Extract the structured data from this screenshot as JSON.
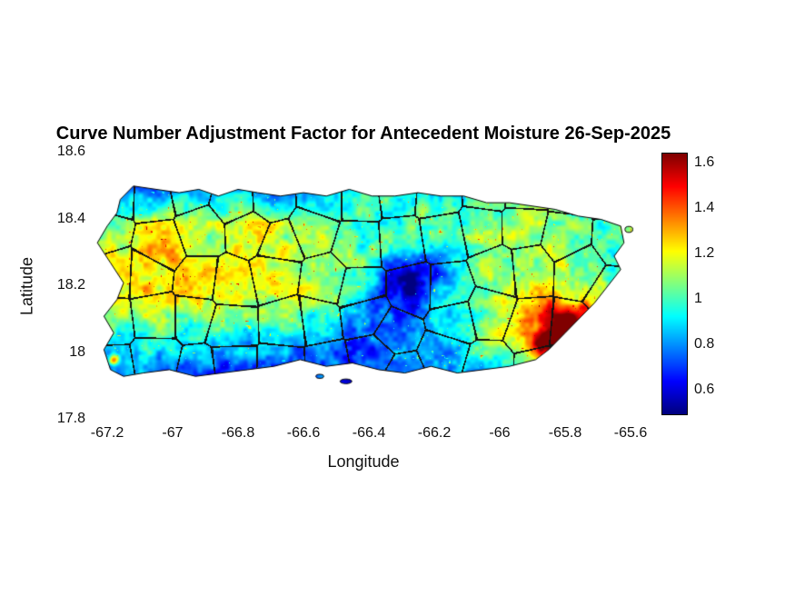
{
  "chart_data": {
    "type": "heatmap",
    "title": "Curve Number Adjustment Factor for Antecedent Moisture 26-Sep-2025",
    "xlabel": "Longitude",
    "ylabel": "Latitude",
    "region": "Puerto Rico",
    "xlim": [
      -67.25,
      -65.5833
    ],
    "ylim": [
      17.8,
      18.6
    ],
    "xticks": [
      {
        "value": -67.2,
        "label": "-67.2"
      },
      {
        "value": -67.0,
        "label": "-67"
      },
      {
        "value": -66.8,
        "label": "-66.8"
      },
      {
        "value": -66.6,
        "label": "-66.6"
      },
      {
        "value": -66.4,
        "label": "-66.4"
      },
      {
        "value": -66.2,
        "label": "-66.2"
      },
      {
        "value": -66.0,
        "label": "-66"
      },
      {
        "value": -65.8,
        "label": "-65.8"
      },
      {
        "value": -65.6,
        "label": "-65.6"
      }
    ],
    "yticks": [
      {
        "value": 18.6,
        "label": "18.6"
      },
      {
        "value": 18.4,
        "label": "18.4"
      },
      {
        "value": 18.2,
        "label": "18.2"
      },
      {
        "value": 18.0,
        "label": "18"
      },
      {
        "value": 17.8,
        "label": "17.8"
      }
    ],
    "colormap": "jet",
    "clim": [
      0.5,
      1.65
    ],
    "colorbar": {
      "ticks": [
        {
          "value": 0.6,
          "label": "0.6"
        },
        {
          "value": 0.8,
          "label": "0.8"
        },
        {
          "value": 1.0,
          "label": "1"
        },
        {
          "value": 1.2,
          "label": "1.2"
        },
        {
          "value": 1.4,
          "label": "1.4"
        },
        {
          "value": 1.6,
          "label": "1.6"
        }
      ]
    },
    "coast_color": "#000000",
    "background": "#ffffff",
    "grid": {
      "lon": [
        -67.25,
        -67.15,
        -67.05,
        -66.95,
        -66.85,
        -66.75,
        -66.65,
        -66.55,
        -66.45,
        -66.35,
        -66.25,
        -66.15,
        -66.05,
        -65.95,
        -65.85,
        -65.75,
        -65.65
      ],
      "lat": [
        18.5,
        18.39,
        18.28,
        18.17,
        18.06,
        17.95
      ],
      "values": [
        [
          0.85,
          0.78,
          0.72,
          0.8,
          0.88,
          0.78,
          0.74,
          0.85,
          0.92,
          1.0,
          0.9,
          0.85,
          1.0,
          1.05,
          0.95,
          0.9,
          1.0
        ],
        [
          1.05,
          1.12,
          1.18,
          1.12,
          1.08,
          1.18,
          1.12,
          1.08,
          1.02,
          1.0,
          1.08,
          1.02,
          1.08,
          1.15,
          1.1,
          1.0,
          1.05
        ],
        [
          1.15,
          1.22,
          1.28,
          1.22,
          1.18,
          1.22,
          1.18,
          1.12,
          1.08,
          0.95,
          0.9,
          0.95,
          1.08,
          1.12,
          1.1,
          1.05,
          1.0
        ],
        [
          1.05,
          1.18,
          1.25,
          1.2,
          1.25,
          1.2,
          1.15,
          1.1,
          1.0,
          0.85,
          0.8,
          0.9,
          1.05,
          1.2,
          1.3,
          1.2,
          1.0
        ],
        [
          0.95,
          1.0,
          1.05,
          1.0,
          0.95,
          0.9,
          0.95,
          0.9,
          0.85,
          0.8,
          0.85,
          0.9,
          1.1,
          1.25,
          1.35,
          1.25,
          1.05
        ],
        [
          0.8,
          0.85,
          0.8,
          0.75,
          0.7,
          0.75,
          0.7,
          0.75,
          0.7,
          0.75,
          0.8,
          0.75,
          0.85,
          1.0,
          1.1,
          1.0,
          0.95
        ]
      ]
    },
    "anomalies": [
      {
        "lon": -65.82,
        "lat": 18.07,
        "amp": 0.45,
        "r": 0.06
      },
      {
        "lon": -65.78,
        "lat": 18.1,
        "amp": 0.3,
        "r": 0.03
      },
      {
        "lon": -65.87,
        "lat": 18.02,
        "amp": 0.35,
        "r": 0.035
      },
      {
        "lon": -65.74,
        "lat": 18.13,
        "amp": 0.25,
        "r": 0.025
      },
      {
        "lon": -67.18,
        "lat": 17.98,
        "amp": 0.55,
        "r": 0.015
      },
      {
        "lon": -66.3,
        "lat": 18.2,
        "amp": -0.3,
        "r": 0.08
      },
      {
        "lon": -66.2,
        "lat": 18.27,
        "amp": -0.18,
        "r": 0.05
      },
      {
        "lon": -66.45,
        "lat": 18.02,
        "amp": -0.12,
        "r": 0.07
      }
    ],
    "texture": {
      "f1": 26,
      "amp1": 0.1,
      "f2": 72,
      "amp2": 0.07,
      "fs": 135,
      "spike_thresh": 0.93,
      "spike_amp": 0.45
    },
    "boundaries": {
      "cols": 13,
      "rows": 5,
      "jitter": 0.55,
      "threshold": 0.0042,
      "lat_min": 17.9,
      "lat_span": 0.64,
      "color": "#121212"
    },
    "coastline": [
      [
        -67.16,
        18.46
      ],
      [
        -67.12,
        18.5
      ],
      [
        -67.05,
        18.49
      ],
      [
        -66.98,
        18.48
      ],
      [
        -66.92,
        18.49
      ],
      [
        -66.86,
        18.47
      ],
      [
        -66.8,
        18.49
      ],
      [
        -66.74,
        18.48
      ],
      [
        -66.67,
        18.47
      ],
      [
        -66.6,
        18.48
      ],
      [
        -66.53,
        18.47
      ],
      [
        -66.46,
        18.49
      ],
      [
        -66.39,
        18.47
      ],
      [
        -66.32,
        18.47
      ],
      [
        -66.25,
        18.48
      ],
      [
        -66.18,
        18.47
      ],
      [
        -66.11,
        18.47
      ],
      [
        -66.04,
        18.45
      ],
      [
        -65.97,
        18.45
      ],
      [
        -65.9,
        18.44
      ],
      [
        -65.83,
        18.43
      ],
      [
        -65.76,
        18.41
      ],
      [
        -65.69,
        18.4
      ],
      [
        -65.63,
        18.38
      ],
      [
        -65.62,
        18.33
      ],
      [
        -65.65,
        18.29
      ],
      [
        -65.63,
        18.25
      ],
      [
        -65.67,
        18.2
      ],
      [
        -65.71,
        18.15
      ],
      [
        -65.75,
        18.11
      ],
      [
        -65.8,
        18.06
      ],
      [
        -65.85,
        18.01
      ],
      [
        -65.89,
        17.98
      ],
      [
        -65.97,
        17.96
      ],
      [
        -66.05,
        17.95
      ],
      [
        -66.13,
        17.94
      ],
      [
        -66.21,
        17.96
      ],
      [
        -66.29,
        17.94
      ],
      [
        -66.37,
        17.95
      ],
      [
        -66.45,
        17.97
      ],
      [
        -66.53,
        17.96
      ],
      [
        -66.61,
        17.98
      ],
      [
        -66.69,
        17.96
      ],
      [
        -66.77,
        17.95
      ],
      [
        -66.85,
        17.94
      ],
      [
        -66.93,
        17.93
      ],
      [
        -67.01,
        17.95
      ],
      [
        -67.09,
        17.94
      ],
      [
        -67.15,
        17.93
      ],
      [
        -67.19,
        17.95
      ],
      [
        -67.21,
        18.01
      ],
      [
        -67.18,
        18.06
      ],
      [
        -67.21,
        18.11
      ],
      [
        -67.17,
        18.16
      ],
      [
        -67.15,
        18.21
      ],
      [
        -67.19,
        18.27
      ],
      [
        -67.23,
        18.33
      ],
      [
        -67.2,
        18.38
      ],
      [
        -67.17,
        18.42
      ]
    ],
    "islets": [
      {
        "lon": -66.47,
        "lat": 17.915,
        "rlon": 0.018,
        "rlat": 0.007
      },
      {
        "lon": -66.55,
        "lat": 17.93,
        "rlon": 0.012,
        "rlat": 0.006
      },
      {
        "lon": -65.605,
        "lat": 18.37,
        "rlon": 0.012,
        "rlat": 0.009
      }
    ]
  }
}
